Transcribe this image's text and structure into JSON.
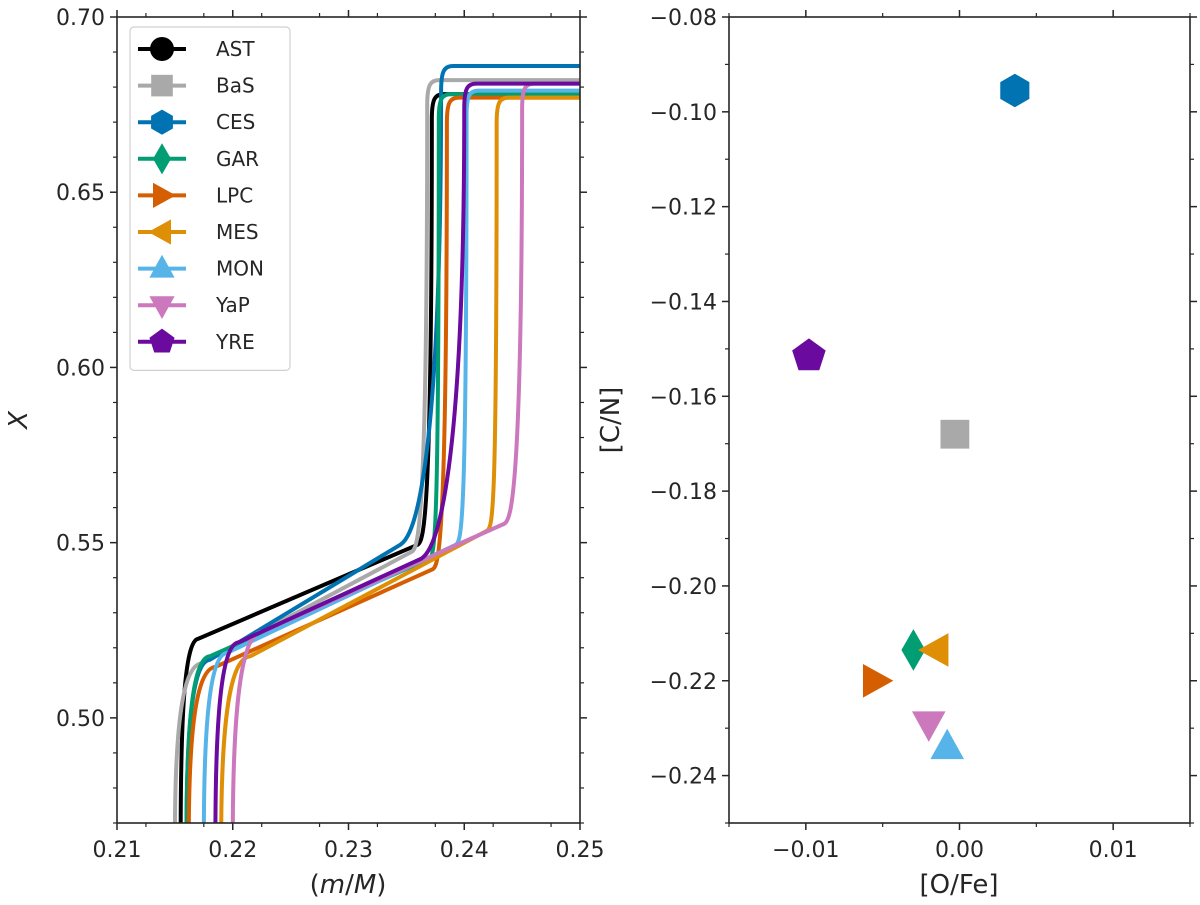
{
  "chart_data": [
    {
      "type": "line",
      "xlabel_pre": "(",
      "xlabel_m": "m",
      "xlabel_slash": "/",
      "xlabel_M": "M",
      "xlabel_post": ")",
      "ylabel": "X",
      "xlim": [
        0.21,
        0.25
      ],
      "ylim": [
        0.47,
        0.7
      ],
      "xticks": [
        0.21,
        0.22,
        0.23,
        0.24,
        0.25
      ],
      "xtick_labels": [
        "0.21",
        "0.22",
        "0.23",
        "0.24",
        "0.25"
      ],
      "yticks": [
        0.5,
        0.55,
        0.6,
        0.65,
        0.7
      ],
      "ytick_labels": [
        "0.50",
        "0.55",
        "0.60",
        "0.65",
        "0.70"
      ],
      "legend_position": "top-left",
      "series": [
        {
          "name": "AST",
          "color": "#000000",
          "marker": "circle",
          "x0": 0.2155,
          "x1": 0.2165,
          "y1": 0.522,
          "x2": 0.2365,
          "y2": 0.55,
          "x3": 0.2372,
          "y3": 0.678
        },
        {
          "name": "BaS",
          "color": "#a9a9a9",
          "marker": "square",
          "x0": 0.215,
          "x1": 0.2168,
          "y1": 0.515,
          "x2": 0.236,
          "y2": 0.548,
          "x3": 0.2368,
          "y3": 0.682
        },
        {
          "name": "CES",
          "color": "#0173b2",
          "marker": "hexagon",
          "x0": 0.216,
          "x1": 0.2175,
          "y1": 0.516,
          "x2": 0.235,
          "y2": 0.55,
          "x3": 0.238,
          "y3": 0.686
        },
        {
          "name": "GAR",
          "color": "#029e73",
          "marker": "diamond",
          "x0": 0.216,
          "x1": 0.2175,
          "y1": 0.517,
          "x2": 0.2375,
          "y2": 0.546,
          "x3": 0.2378,
          "y3": 0.678
        },
        {
          "name": "LPC",
          "color": "#d55e00",
          "marker": "triangle-right",
          "x0": 0.2162,
          "x1": 0.218,
          "y1": 0.514,
          "x2": 0.2378,
          "y2": 0.543,
          "x3": 0.2385,
          "y3": 0.677
        },
        {
          "name": "MES",
          "color": "#de8f05",
          "marker": "triangle-left",
          "x0": 0.219,
          "x1": 0.221,
          "y1": 0.517,
          "x2": 0.2425,
          "y2": 0.554,
          "x3": 0.2428,
          "y3": 0.677
        },
        {
          "name": "MON",
          "color": "#56b4e9",
          "marker": "triangle-up",
          "x0": 0.2175,
          "x1": 0.219,
          "y1": 0.518,
          "x2": 0.2398,
          "y2": 0.55,
          "x3": 0.2402,
          "y3": 0.679
        },
        {
          "name": "YaP",
          "color": "#cc78bc",
          "marker": "triangle-down",
          "x0": 0.22,
          "x1": 0.222,
          "y1": 0.524,
          "x2": 0.244,
          "y2": 0.556,
          "x3": 0.245,
          "y3": 0.681
        },
        {
          "name": "YRE",
          "color": "#6a0a9e",
          "marker": "pentagon",
          "x0": 0.2185,
          "x1": 0.22,
          "y1": 0.521,
          "x2": 0.2368,
          "y2": 0.546,
          "x3": 0.24,
          "y3": 0.681
        }
      ]
    },
    {
      "type": "scatter",
      "xlabel": "[O/Fe]",
      "ylabel": "[C/N]",
      "xlim": [
        -0.015,
        0.015
      ],
      "ylim": [
        -0.25,
        -0.08
      ],
      "xticks": [
        -0.01,
        0.0,
        0.01
      ],
      "xtick_labels": [
        "−0.01",
        "0.00",
        "0.01"
      ],
      "yticks": [
        -0.24,
        -0.22,
        -0.2,
        -0.18,
        -0.16,
        -0.14,
        -0.12,
        -0.1,
        -0.08
      ],
      "ytick_labels": [
        "−0.24",
        "−0.22",
        "−0.20",
        "−0.18",
        "−0.16",
        "−0.14",
        "−0.12",
        "−0.10",
        "−0.08"
      ],
      "points": [
        {
          "name": "BaS",
          "x": -0.0003,
          "y": -0.168
        },
        {
          "name": "CES",
          "x": 0.0036,
          "y": -0.0955
        },
        {
          "name": "GAR",
          "x": -0.003,
          "y": -0.2135
        },
        {
          "name": "LPC",
          "x": -0.0055,
          "y": -0.22
        },
        {
          "name": "MES",
          "x": -0.0015,
          "y": -0.2135
        },
        {
          "name": "MON",
          "x": -0.0008,
          "y": -0.234
        },
        {
          "name": "YaP",
          "x": -0.002,
          "y": -0.229
        },
        {
          "name": "YRE",
          "x": -0.0098,
          "y": -0.1515
        }
      ]
    }
  ]
}
